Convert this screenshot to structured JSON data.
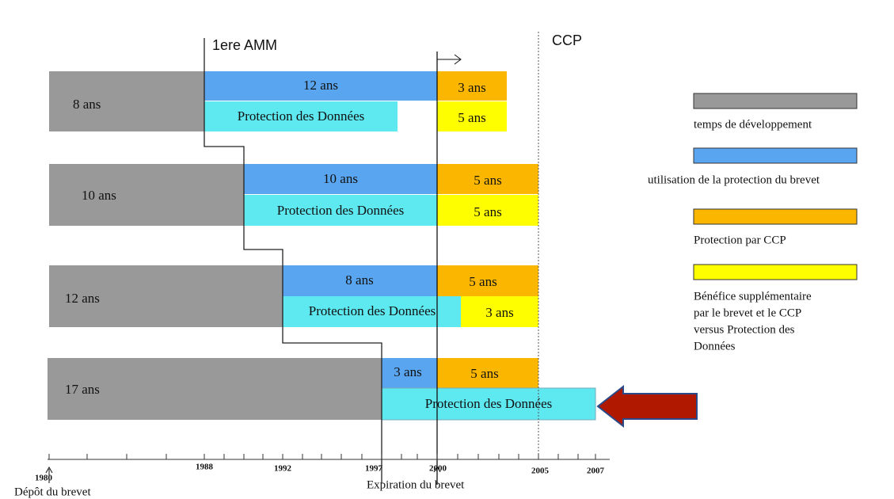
{
  "header": {
    "amm": "1ere AMM",
    "ccp": "CCP"
  },
  "rows": [
    {
      "label": "8 ans",
      "patent": "12 ans",
      "ccp": "3 ans",
      "data": "Protection des Données",
      "extra": "5 ans"
    },
    {
      "label": "10 ans",
      "patent": "10 ans",
      "ccp": "5 ans",
      "data": "Protection des Données",
      "extra": "5 ans"
    },
    {
      "label": "12 ans",
      "patent": "8 ans",
      "ccp": "5 ans",
      "data": "Protection des Données",
      "extra": "3 ans"
    },
    {
      "label": "17 ans",
      "patent": "3 ans",
      "ccp": "5 ans",
      "data": "Protection des Données"
    }
  ],
  "axis": {
    "years": [
      "1980",
      "1988",
      "1992",
      "1997",
      "2000",
      "2005",
      "2007"
    ],
    "start": "Dépôt du brevet",
    "end": "Expiration du brevet"
  },
  "legend": [
    {
      "label": "temps de développement"
    },
    {
      "label": "utilisation de la protection du brevet"
    },
    {
      "label": "Protection par CCP"
    },
    {
      "label": [
        "Bénéfice supplémentaire",
        "par le brevet et le CCP",
        "versus Protection des",
        "Données"
      ]
    }
  ]
}
